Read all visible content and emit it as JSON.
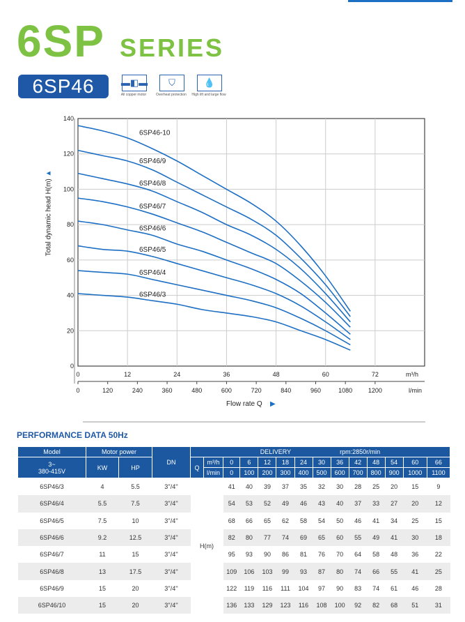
{
  "header": {
    "series_number": "6SP",
    "series_word": "SERIES",
    "model_badge": "6SP46",
    "features": [
      {
        "icon": "motor-icon",
        "label": "All copper motor"
      },
      {
        "icon": "shield-check-icon",
        "label": "Overheat protection"
      },
      {
        "icon": "water-flow-icon",
        "label": "High lift and large flow"
      }
    ]
  },
  "colors": {
    "green": "#7dc242",
    "blue": "#1f58a6",
    "curve": "#1d6fc4"
  },
  "chart_data": {
    "type": "line",
    "xlabel": "Flow rate  Q",
    "ylabel": "Total dynamic head H(m)",
    "x_unit": "m³/h",
    "x2_unit": "l/min",
    "xlim": [
      0,
      84
    ],
    "ylim": [
      0,
      140
    ],
    "grid": true,
    "xticks": [
      0,
      12,
      24,
      36,
      48,
      60,
      72
    ],
    "x2ticks": [
      0,
      120,
      240,
      360,
      480,
      600,
      720,
      840,
      960,
      1080,
      1200
    ],
    "yticks": [
      0,
      20,
      40,
      60,
      80,
      100,
      120,
      140
    ],
    "x": [
      0,
      6,
      12,
      18,
      24,
      30,
      36,
      42,
      48,
      54,
      60,
      66
    ],
    "series": [
      {
        "name": "6SP46/3",
        "values": [
          41,
          40,
          39,
          37,
          35,
          32,
          30,
          28,
          25,
          20,
          15,
          9
        ]
      },
      {
        "name": "6SP46/4",
        "values": [
          54,
          53,
          52,
          49,
          46,
          43,
          40,
          37,
          33,
          27,
          20,
          12
        ]
      },
      {
        "name": "6SP46/5",
        "values": [
          68,
          66,
          65,
          62,
          58,
          54,
          50,
          46,
          41,
          34,
          25,
          15
        ]
      },
      {
        "name": "6SP46/6",
        "values": [
          82,
          80,
          77,
          74,
          69,
          65,
          60,
          55,
          49,
          41,
          30,
          18
        ]
      },
      {
        "name": "6SP46/7",
        "values": [
          95,
          93,
          90,
          86,
          81,
          76,
          70,
          64,
          58,
          48,
          36,
          22
        ]
      },
      {
        "name": "6SP46/8",
        "values": [
          109,
          106,
          103,
          99,
          93,
          87,
          80,
          74,
          66,
          55,
          41,
          25
        ]
      },
      {
        "name": "6SP46/9",
        "values": [
          122,
          119,
          116,
          111,
          104,
          97,
          90,
          83,
          74,
          61,
          46,
          28
        ]
      },
      {
        "name": "6SP46-10",
        "values": [
          136,
          133,
          129,
          123,
          116,
          108,
          100,
          92,
          82,
          68,
          51,
          31
        ]
      }
    ]
  },
  "table": {
    "title": "PERFORMANCE DATA 50Hz",
    "model": "Model",
    "voltage_line1": "3~",
    "voltage_line2": "380-415V",
    "motor_power": "Motor power",
    "kw": "KW",
    "hp": "HP",
    "dn": "DN",
    "delivery": "DELIVERY",
    "rpm": "rpm:2850r/min",
    "q": "Q",
    "unit1": "m³/h",
    "unit2": "l/min",
    "h": "H(m)",
    "flow_m3h": [
      "0",
      "6",
      "12",
      "18",
      "24",
      "30",
      "36",
      "42",
      "48",
      "54",
      "60",
      "66"
    ],
    "flow_lmin": [
      "0",
      "100",
      "200",
      "300",
      "400",
      "500",
      "600",
      "700",
      "800",
      "900",
      "1000",
      "1100"
    ],
    "rows": [
      {
        "model": "6SP46/3",
        "kw": "4",
        "hp": "5.5",
        "dn": "3''/4''",
        "h": [
          "41",
          "40",
          "39",
          "37",
          "35",
          "32",
          "30",
          "28",
          "25",
          "20",
          "15",
          "9"
        ]
      },
      {
        "model": "6SP46/4",
        "kw": "5.5",
        "hp": "7.5",
        "dn": "3''/4''",
        "h": [
          "54",
          "53",
          "52",
          "49",
          "46",
          "43",
          "40",
          "37",
          "33",
          "27",
          "20",
          "12"
        ]
      },
      {
        "model": "6SP46/5",
        "kw": "7.5",
        "hp": "10",
        "dn": "3''/4''",
        "h": [
          "68",
          "66",
          "65",
          "62",
          "58",
          "54",
          "50",
          "46",
          "41",
          "34",
          "25",
          "15"
        ]
      },
      {
        "model": "6SP46/6",
        "kw": "9.2",
        "hp": "12.5",
        "dn": "3''/4''",
        "h": [
          "82",
          "80",
          "77",
          "74",
          "69",
          "65",
          "60",
          "55",
          "49",
          "41",
          "30",
          "18"
        ]
      },
      {
        "model": "6SP46/7",
        "kw": "11",
        "hp": "15",
        "dn": "3''/4''",
        "h": [
          "95",
          "93",
          "90",
          "86",
          "81",
          "76",
          "70",
          "64",
          "58",
          "48",
          "36",
          "22"
        ]
      },
      {
        "model": "6SP46/8",
        "kw": "13",
        "hp": "17.5",
        "dn": "3''/4''",
        "h": [
          "109",
          "106",
          "103",
          "99",
          "93",
          "87",
          "80",
          "74",
          "66",
          "55",
          "41",
          "25"
        ]
      },
      {
        "model": "6SP46/9",
        "kw": "15",
        "hp": "20",
        "dn": "3''/4''",
        "h": [
          "122",
          "119",
          "116",
          "111",
          "104",
          "97",
          "90",
          "83",
          "74",
          "61",
          "46",
          "28"
        ]
      },
      {
        "model": "6SP46/10",
        "kw": "15",
        "hp": "20",
        "dn": "3''/4''",
        "h": [
          "136",
          "133",
          "129",
          "123",
          "116",
          "108",
          "100",
          "92",
          "82",
          "68",
          "51",
          "31"
        ]
      }
    ]
  }
}
